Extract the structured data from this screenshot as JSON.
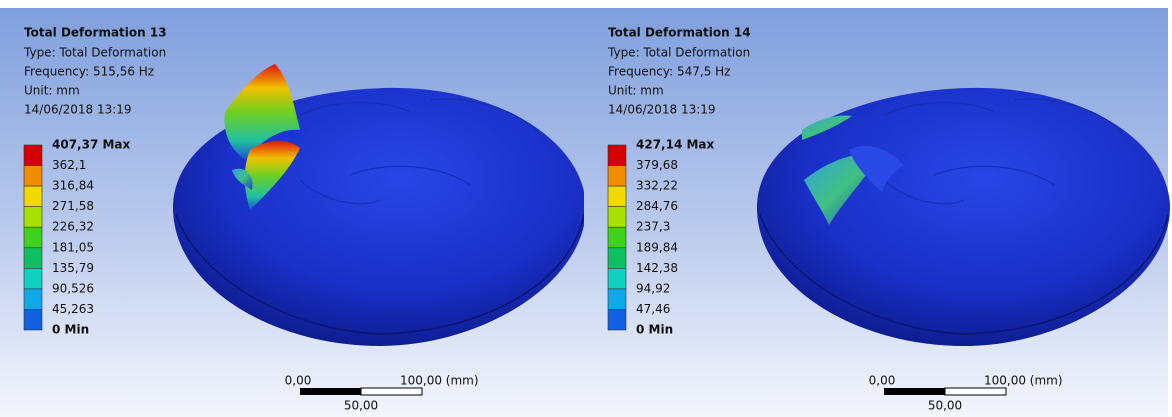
{
  "panels": [
    {
      "title": "Total Deformation 13",
      "type": "Type: Total Deformation",
      "frequency": "Frequency: 515,56 Hz",
      "unit": "Unit: mm",
      "date": "14/06/2018 13:19",
      "legend": [
        "407,37 Max",
        "362,1",
        "316,84",
        "271,58",
        "226,32",
        "181,05",
        "135,79",
        "90,526",
        "45,263",
        "0 Min"
      ],
      "scale": {
        "start": "0,00",
        "end": "100,00 (mm)",
        "mid": "50,00"
      }
    },
    {
      "title": "Total Deformation 14",
      "type": "Type: Total Deformation",
      "frequency": "Frequency: 547,5 Hz",
      "unit": "Unit: mm",
      "date": "14/06/2018 13:19",
      "legend": [
        "427,14 Max",
        "379,68",
        "332,22",
        "284,76",
        "237,3",
        "189,84",
        "142,38",
        "94,92",
        "47,46",
        "0 Min"
      ],
      "scale": {
        "start": "0,00",
        "end": "100,00 (mm)",
        "mid": "50,00"
      }
    }
  ]
}
